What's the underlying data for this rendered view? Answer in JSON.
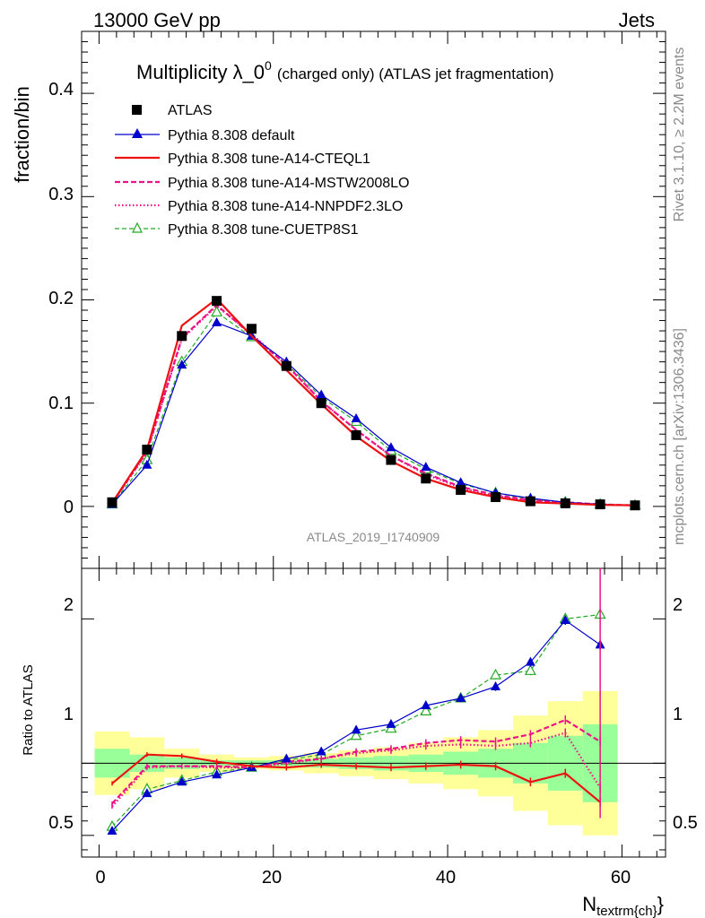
{
  "header": {
    "left": "13000 GeV pp",
    "right": "Jets"
  },
  "side_labels": {
    "rivet": "Rivet 3.1.10, ≥ 2.2M events",
    "mcplots": "mcplots.cern.ch [arXiv:1306.3436]"
  },
  "watermark": "ATLAS_2019_I1740909",
  "chart_data": {
    "type": "line",
    "title_main": "Multiplicity λ_0",
    "title_sup": "0",
    "title_sub": "(charged only) (ATLAS jet fragmentation)",
    "xlabel_main": "N",
    "xlabel_sub": "textrm{ch}",
    "xlabel_close": "}",
    "ylabel_top": "fraction/bin",
    "ylabel_bottom": "Ratio to ATLAS",
    "xlim": [
      -2,
      65
    ],
    "ylim_top": [
      -0.06,
      0.46
    ],
    "ylim_bottom": [
      0.35,
      2.35
    ],
    "x_ticks": [
      "0",
      "20",
      "40",
      "60"
    ],
    "y_ticks_top": [
      "0",
      "0.1",
      "0.2",
      "0.3",
      "0.4"
    ],
    "y_ticks_bottom": [
      "0.5",
      "1",
      "2"
    ],
    "x": [
      1.5,
      5.5,
      9.5,
      13.5,
      17.5,
      21.5,
      25.5,
      29.5,
      33.5,
      37.5,
      41.5,
      45.5,
      49.5,
      53.5,
      57.5,
      61.5
    ],
    "data": {
      "name": "ATLAS",
      "values": [
        0.004,
        0.055,
        0.165,
        0.199,
        0.172,
        0.136,
        0.1,
        0.069,
        0.045,
        0.027,
        0.016,
        0.009,
        0.005,
        0.003,
        0.002,
        0.001
      ]
    },
    "series": [
      {
        "name": "Pythia 8.308 default",
        "color": "#0000cc",
        "values": [
          0.002,
          0.04,
          0.137,
          0.178,
          0.165,
          0.14,
          0.108,
          0.085,
          0.057,
          0.038,
          0.023,
          0.013,
          0.008,
          0.004,
          0.002,
          0.001
        ],
        "ratio": [
          0.53,
          0.79,
          0.87,
          0.92,
          0.97,
          1.03,
          1.08,
          1.23,
          1.27,
          1.4,
          1.45,
          1.53,
          1.7,
          1.99,
          1.82,
          null
        ]
      },
      {
        "name": "Pythia 8.308 tune-A14-CTEQL1",
        "color": "#ee1111",
        "values": [
          0.0035,
          0.055,
          0.175,
          0.201,
          0.165,
          0.132,
          0.099,
          0.068,
          0.044,
          0.027,
          0.016,
          0.009,
          0.004,
          0.0028,
          0.0015,
          0.001
        ],
        "ratio": [
          0.86,
          1.06,
          1.05,
          1.01,
          0.98,
          0.97,
          0.99,
          0.98,
          0.97,
          0.98,
          0.99,
          0.98,
          0.87,
          0.93,
          0.73,
          null
        ]
      },
      {
        "name": "Pythia 8.308 tune-A14-MSTW2008LO",
        "color": "#ee1188",
        "values": [
          0.003,
          0.053,
          0.163,
          0.195,
          0.166,
          0.137,
          0.102,
          0.074,
          0.049,
          0.032,
          0.019,
          0.011,
          0.006,
          0.004,
          0.002,
          0.001
        ],
        "ratio": [
          0.72,
          0.98,
          0.98,
          0.98,
          0.97,
          1.01,
          1.03,
          1.08,
          1.1,
          1.14,
          1.16,
          1.15,
          1.2,
          1.3,
          1.15,
          null
        ]
      },
      {
        "name": "Pythia 8.308 tune-A14-NNPDF2.3LO",
        "color": "#ee1188",
        "values": [
          0.003,
          0.052,
          0.162,
          0.194,
          0.167,
          0.137,
          0.102,
          0.074,
          0.049,
          0.031,
          0.018,
          0.01,
          0.0055,
          0.0035,
          0.0018,
          0.001
        ],
        "ratio": [
          0.7,
          0.97,
          0.98,
          0.97,
          0.97,
          1.0,
          1.03,
          1.07,
          1.09,
          1.12,
          1.13,
          1.12,
          1.14,
          1.21,
          0.83,
          null
        ]
      },
      {
        "name": "Pythia 8.308 tune-CUETP8S1",
        "color": "#22aa22",
        "values": [
          0.002,
          0.045,
          0.14,
          0.188,
          0.164,
          0.138,
          0.106,
          0.082,
          0.054,
          0.036,
          0.022,
          0.013,
          0.007,
          0.004,
          0.002,
          0.001
        ],
        "ratio": [
          0.56,
          0.82,
          0.88,
          0.94,
          0.97,
          1.02,
          1.06,
          1.19,
          1.24,
          1.36,
          1.45,
          1.61,
          1.64,
          2.0,
          2.03,
          null
        ]
      }
    ],
    "legend_placement": "top-left",
    "grid": false
  }
}
